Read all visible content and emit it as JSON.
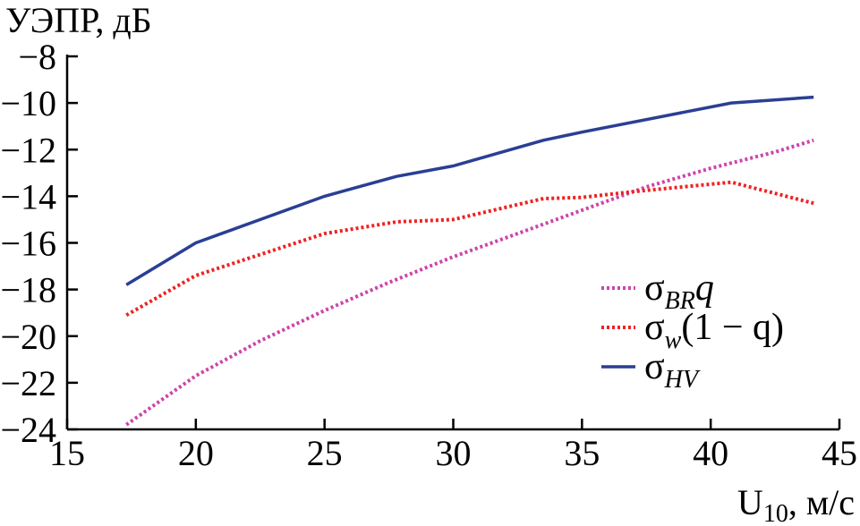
{
  "chart_data": {
    "type": "line",
    "ylabel": "УЭПР, дБ",
    "xlabel_main": "U",
    "xlabel_sub": "10",
    "xlabel_rest": ", м/с",
    "xlim": [
      15,
      45
    ],
    "ylim": [
      -24,
      -8
    ],
    "xticks": [
      15,
      20,
      25,
      30,
      35,
      40,
      45
    ],
    "yticks": [
      -8,
      -10,
      -12,
      -14,
      -16,
      -18,
      -20,
      -22,
      -24
    ],
    "grid": false,
    "legend_position": "right",
    "series": [
      {
        "name_base": "σ",
        "name_sub": "BR",
        "name_rest": "q",
        "style": "dotted",
        "color": "#cc44aa",
        "x": [
          17.3,
          20,
          22.5,
          25,
          27.5,
          30,
          32.5,
          35,
          37.5,
          40,
          42.5,
          44
        ],
        "y": [
          -23.8,
          -21.7,
          -20.2,
          -18.9,
          -17.7,
          -16.6,
          -15.6,
          -14.6,
          -13.6,
          -12.8,
          -12.1,
          -11.6
        ]
      },
      {
        "name_base": "σ",
        "name_sub": "w",
        "name_rest": "(1 − q)",
        "style": "dotted",
        "color": "#ee2222",
        "x": [
          17.3,
          20,
          25,
          27.8,
          30,
          33.5,
          35,
          37,
          40.8,
          44
        ],
        "y": [
          -19.1,
          -17.4,
          -15.6,
          -15.1,
          -15.0,
          -14.1,
          -14.05,
          -13.8,
          -13.4,
          -14.3
        ]
      },
      {
        "name_base": "σ",
        "name_sub": "HV",
        "name_rest": "",
        "style": "solid",
        "color": "#2a3f94",
        "x": [
          17.3,
          20,
          25,
          27.8,
          30,
          33.5,
          35,
          40.8,
          44
        ],
        "y": [
          -17.8,
          -16.0,
          -14.0,
          -13.15,
          -12.7,
          -11.6,
          -11.25,
          -10.0,
          -9.75
        ]
      }
    ]
  }
}
